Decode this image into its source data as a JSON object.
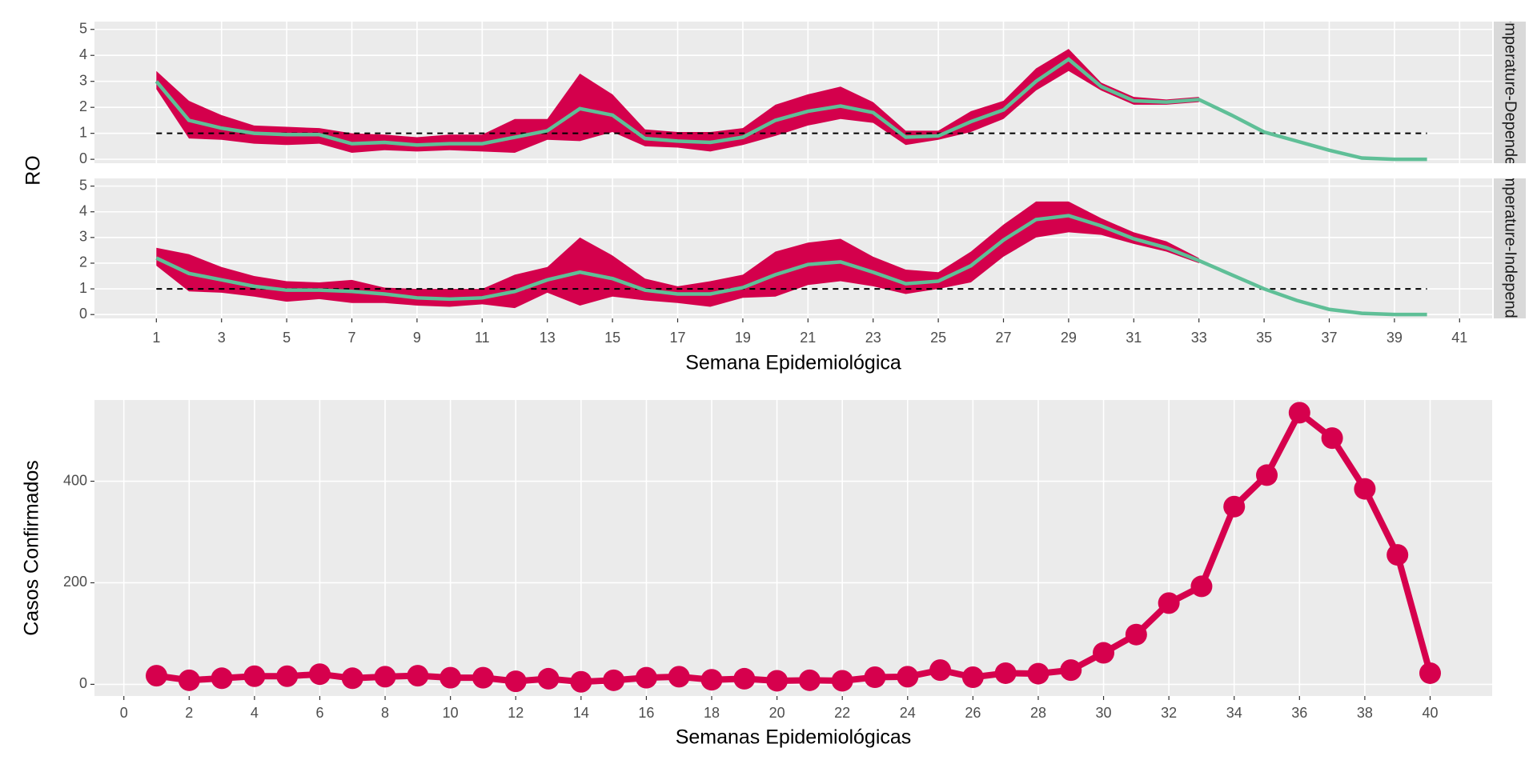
{
  "chart_data": [
    {
      "type": "ribbon",
      "ylabel": "RO",
      "xlabel": "Semana Epidemiológica",
      "x": [
        1,
        2,
        3,
        4,
        5,
        6,
        7,
        8,
        9,
        10,
        11,
        12,
        13,
        14,
        15,
        16,
        17,
        18,
        19,
        20,
        21,
        22,
        23,
        24,
        25,
        26,
        27,
        28,
        29,
        30,
        31,
        32,
        33,
        34,
        35,
        36,
        37,
        38,
        39,
        40
      ],
      "xlim": [
        -0.9,
        42
      ],
      "xticks": [
        1,
        3,
        5,
        7,
        9,
        11,
        13,
        15,
        17,
        19,
        21,
        23,
        25,
        27,
        29,
        31,
        33,
        35,
        37,
        39,
        41
      ],
      "ylim": [
        -0.15,
        5.3
      ],
      "yticks": [
        0,
        1,
        2,
        3,
        4,
        5
      ],
      "reference_line": 1,
      "grid": true,
      "ribbon_color": "#d4004c",
      "line_color": "#5fbf97",
      "facets": [
        {
          "label": "Temperature-Dependent",
          "mean": [
            3.0,
            1.5,
            1.2,
            1.0,
            0.95,
            0.95,
            0.6,
            0.65,
            0.55,
            0.6,
            0.6,
            0.85,
            1.1,
            1.95,
            1.7,
            0.8,
            0.7,
            0.65,
            0.85,
            1.5,
            1.85,
            2.05,
            1.8,
            0.85,
            0.9,
            1.45,
            1.9,
            3.0,
            3.85,
            2.8,
            2.25,
            2.2,
            2.3,
            1.7,
            1.05,
            0.7,
            0.35,
            0.05,
            0,
            0
          ],
          "lower": [
            2.7,
            0.8,
            0.75,
            0.6,
            0.55,
            0.6,
            0.25,
            0.35,
            0.3,
            0.35,
            0.3,
            0.25,
            0.75,
            0.7,
            1.05,
            0.5,
            0.45,
            0.3,
            0.55,
            0.9,
            1.3,
            1.55,
            1.4,
            0.55,
            0.75,
            1.05,
            1.55,
            2.65,
            3.4,
            2.65,
            2.1,
            2.1,
            2.2,
            null,
            null,
            null,
            null,
            null,
            null,
            null
          ],
          "upper": [
            3.4,
            2.25,
            1.7,
            1.3,
            1.25,
            1.2,
            1.0,
            0.95,
            0.85,
            0.95,
            0.95,
            1.55,
            1.55,
            3.3,
            2.5,
            1.15,
            1.05,
            1.05,
            1.2,
            2.1,
            2.5,
            2.8,
            2.2,
            1.1,
            1.1,
            1.85,
            2.25,
            3.5,
            4.25,
            2.95,
            2.4,
            2.3,
            2.4,
            null,
            null,
            null,
            null,
            null,
            null,
            null
          ]
        },
        {
          "label": "Temperature-Independent",
          "mean": [
            2.2,
            1.6,
            1.35,
            1.1,
            0.95,
            0.95,
            0.9,
            0.8,
            0.65,
            0.6,
            0.65,
            0.9,
            1.35,
            1.65,
            1.4,
            0.95,
            0.8,
            0.8,
            1.05,
            1.55,
            1.95,
            2.05,
            1.65,
            1.2,
            1.3,
            1.9,
            2.9,
            3.7,
            3.85,
            3.45,
            2.95,
            2.6,
            2.1,
            1.55,
            1.0,
            0.55,
            0.2,
            0.05,
            0,
            0
          ],
          "lower": [
            1.9,
            0.9,
            0.85,
            0.7,
            0.5,
            0.6,
            0.45,
            0.45,
            0.35,
            0.3,
            0.4,
            0.25,
            0.85,
            0.35,
            0.7,
            0.55,
            0.45,
            0.3,
            0.65,
            0.7,
            1.15,
            1.3,
            1.1,
            0.8,
            1.0,
            1.25,
            2.25,
            3.0,
            3.2,
            3.1,
            2.75,
            2.45,
            2.0,
            null,
            null,
            null,
            null,
            null,
            null,
            null
          ],
          "upper": [
            2.6,
            2.35,
            1.85,
            1.5,
            1.3,
            1.25,
            1.35,
            1.05,
            1.0,
            1.0,
            1.0,
            1.55,
            1.85,
            3.0,
            2.3,
            1.4,
            1.1,
            1.3,
            1.55,
            2.45,
            2.8,
            2.95,
            2.25,
            1.75,
            1.65,
            2.45,
            3.5,
            4.4,
            4.4,
            3.75,
            3.2,
            2.85,
            2.2,
            null,
            null,
            null,
            null,
            null,
            null,
            null
          ]
        }
      ]
    },
    {
      "type": "line",
      "ylabel": "Casos Confirmados",
      "xlabel": "Semanas Epidemiológicas",
      "x": [
        1,
        2,
        3,
        4,
        5,
        6,
        7,
        8,
        9,
        10,
        11,
        12,
        13,
        14,
        15,
        16,
        17,
        18,
        19,
        20,
        21,
        22,
        23,
        24,
        25,
        26,
        27,
        28,
        29,
        30,
        31,
        32,
        33,
        34,
        35,
        36,
        37,
        38,
        39,
        40
      ],
      "values": [
        17,
        8,
        12,
        16,
        16,
        20,
        12,
        15,
        17,
        13,
        13,
        6,
        11,
        5,
        8,
        13,
        15,
        9,
        11,
        7,
        8,
        7,
        14,
        15,
        28,
        14,
        22,
        21,
        28,
        62,
        98,
        160,
        193,
        350,
        412,
        535,
        485,
        385,
        255,
        22
      ],
      "color": "#d6004d",
      "xlim": [
        -0.9,
        41.9
      ],
      "xticks": [
        0,
        2,
        4,
        6,
        8,
        10,
        12,
        14,
        16,
        18,
        20,
        22,
        24,
        26,
        28,
        30,
        32,
        34,
        36,
        38,
        40
      ],
      "ylim": [
        -23,
        560
      ],
      "yticks": [
        0,
        200,
        400
      ],
      "grid": true
    }
  ]
}
